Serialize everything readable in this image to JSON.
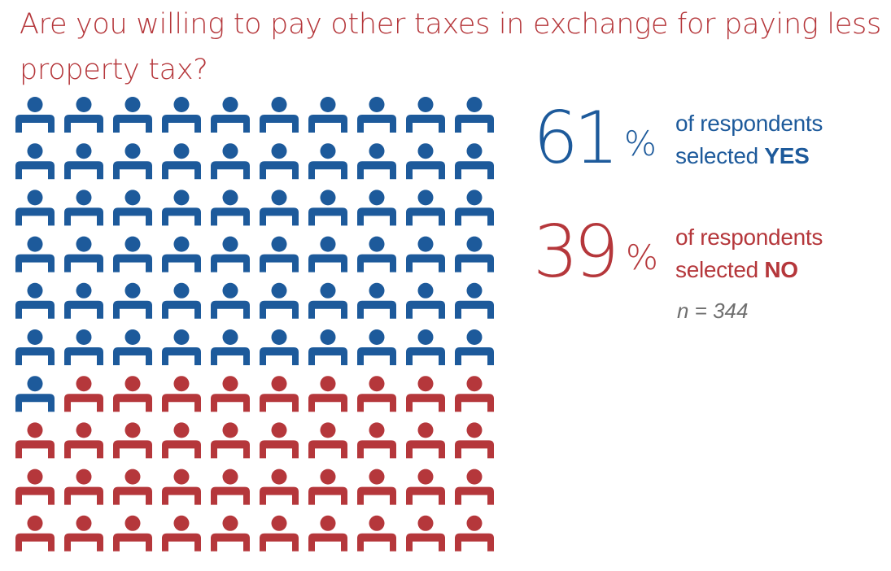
{
  "title": "Are you willing to pay other taxes in exchange for paying less property tax?",
  "stats": {
    "yes": {
      "value": "61",
      "percent_sign": "%",
      "line1": "of respondents",
      "line2_prefix": "selected ",
      "answer": "YES"
    },
    "no": {
      "value": "39",
      "percent_sign": "%",
      "line1": "of respondents",
      "line2_prefix": "selected ",
      "answer": "NO"
    },
    "sample_size": "n = 344"
  },
  "colors": {
    "yes": "#1d5a9b",
    "no": "#b5373b",
    "title": "#b5373b",
    "sample": "#6f6f6f"
  },
  "icon": "person-icon",
  "chart_data": {
    "type": "pictogram",
    "categories": [
      "YES",
      "NO"
    ],
    "values": [
      61,
      39
    ],
    "unit": "%",
    "grid": {
      "rows": 10,
      "columns": 10
    },
    "n": 344
  }
}
